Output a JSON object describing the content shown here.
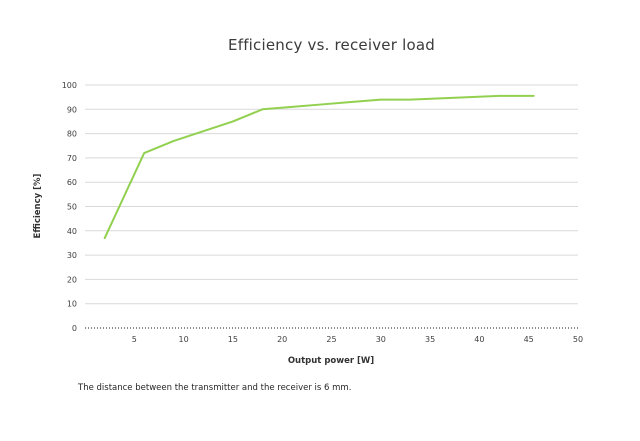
{
  "title": "Efficiency vs. receiver load",
  "caption": "The distance between the transmitter and the receiver is 6 mm.",
  "chart_data": {
    "type": "line",
    "title": "Efficiency vs. receiver load",
    "xlabel": "Output power [W]",
    "ylabel": "Efficiency [%]",
    "xlim": [
      0,
      50
    ],
    "ylim": [
      0,
      100
    ],
    "x_ticks": [
      5,
      10,
      15,
      20,
      25,
      30,
      35,
      40,
      45,
      50
    ],
    "y_ticks": [
      0,
      10,
      20,
      30,
      40,
      50,
      60,
      70,
      80,
      90,
      100
    ],
    "grid": "horizontal",
    "legend": "none",
    "line_color": "#92d050",
    "gridline_color": "#d9d9d9",
    "zero_axis_style": "dotted",
    "series": [
      {
        "name": "Efficiency",
        "x": [
          2,
          6,
          9,
          12,
          15,
          18,
          21,
          24,
          27,
          30,
          33,
          36,
          39,
          42,
          45.5
        ],
        "y": [
          37,
          72,
          77,
          81,
          85,
          90,
          91,
          92,
          93,
          94,
          94,
          94.5,
          95,
          95.5,
          95.5
        ]
      }
    ]
  }
}
